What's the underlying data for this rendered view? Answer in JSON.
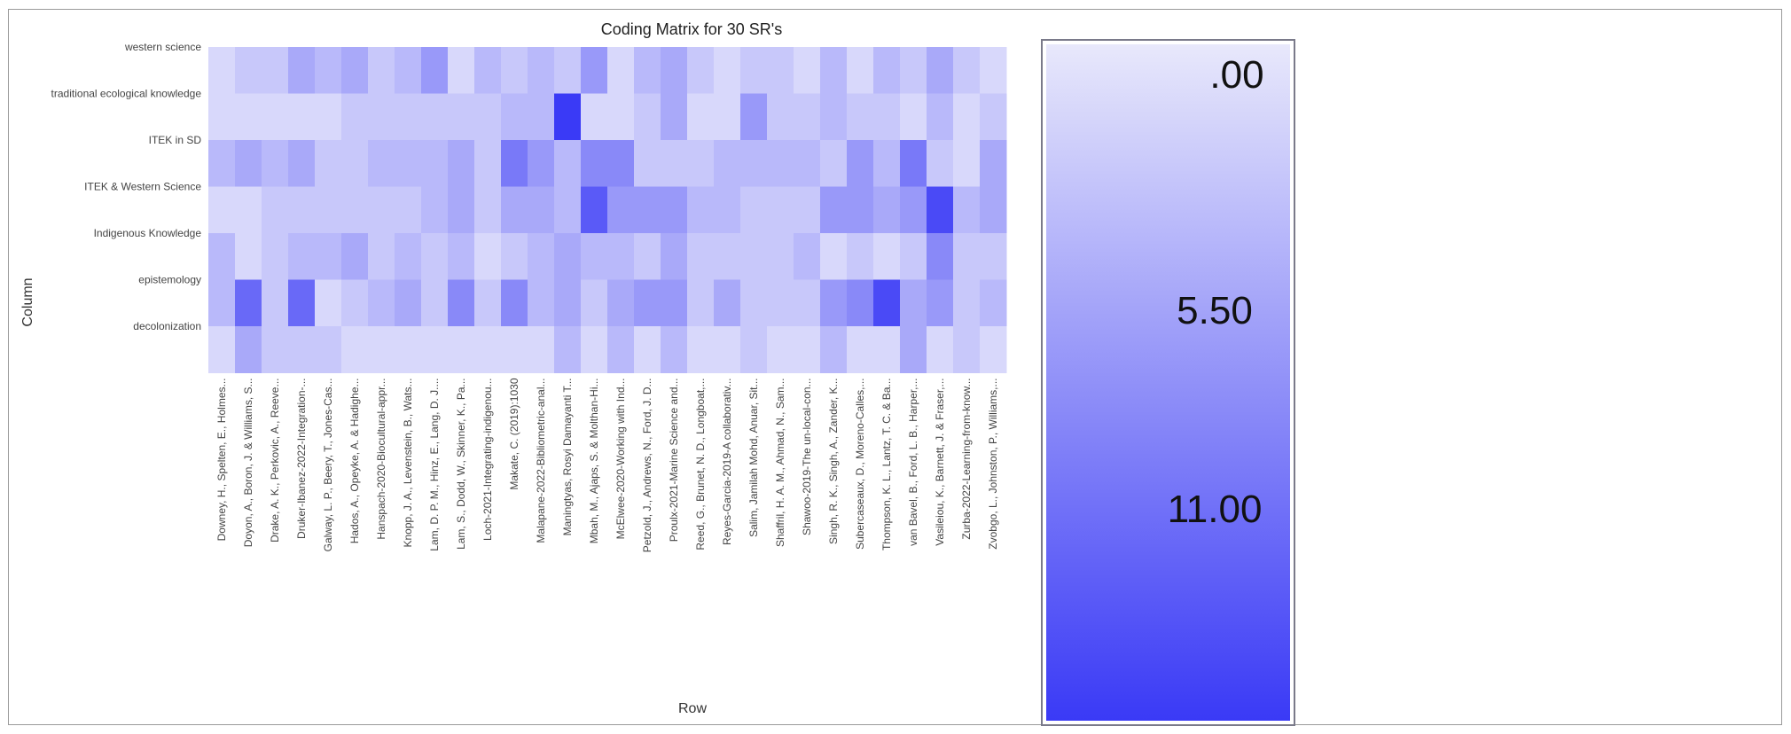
{
  "chart_data": {
    "type": "heatmap",
    "title": "Coding Matrix for 30 SR's",
    "xlabel": "Row",
    "ylabel": "Column",
    "x_categories": [
      "Downey, H., Spelten, E., Holmes...",
      "Doyon, A., Boron, J. & Williams, S...",
      "Drake, A. K., Perkovic, A., Reeve...",
      "Druker-Ibanez-2022-Integration-...",
      "Galway, L. P., Beery, T., Jones-Cas...",
      "Hados, A., Opeyke, A. & Hadighe...",
      "Hanspach-2020-Biocultural-appr...",
      "Knopp, J. A., Levenstein, B., Wats...",
      "Lam, D. P. M., Hinz, E., Lang, D. J....",
      "Lam, S., Dodd, W., Skinner, K., Pa...",
      "Loch-2021-Integrating-indigenou...",
      "Makate, C. (2019):1030",
      "Malapane-2022-Bibliometric-anal...",
      "Maningtyas, Rosyi Damayanti T...",
      "Mbah, M., Ajaps, S. & Molthan-Hi...",
      "McElwee-2020-Working with Ind...",
      "Petzold, J., Andrews, N., Ford, J. D...",
      "Proulx-2021-Marine Science and...",
      "Reed, G., Brunet, N. D., Longboat,...",
      "Reyes-Garcia-2019-A collaborativ...",
      "Salim, Jamilah Mohd, Anuar, Sit...",
      "Shaffril, H. A. M., Ahmad, N., Sam...",
      "Shawoo-2019-The un-local-con...",
      "Singh, R. K., Singh, A., Zander, K...",
      "Subercaseaux, D., Moreno-Calles,...",
      "Thompson, K. L., Lantz, T. C. & Ba...",
      "van Bavel, B., Ford, L. B., Harper,...",
      "Vasileiou, K., Barnett, J. & Fraser,...",
      "Zurba-2022-Learning-from-know...",
      "Zvobgo, L., Johnston, P., Williams,..."
    ],
    "y_categories": [
      "western science",
      "traditional ecological knowledge",
      "ITEK in SD",
      "ITEK & Western Science",
      "Indigenous Knowledge",
      "epistemology",
      "decolonization"
    ],
    "values": [
      [
        1,
        2,
        2,
        4,
        3,
        4,
        2,
        3,
        5,
        1,
        3,
        2,
        3,
        2,
        5,
        1,
        3,
        4,
        2,
        1,
        2,
        2,
        1,
        3,
        1,
        3,
        2,
        4,
        2,
        1
      ],
      [
        1,
        1,
        1,
        1,
        1,
        2,
        2,
        2,
        2,
        2,
        2,
        3,
        3,
        11,
        1,
        1,
        2,
        4,
        1,
        1,
        5,
        2,
        2,
        3,
        2,
        2,
        1,
        3,
        1,
        2
      ],
      [
        3,
        4,
        3,
        4,
        2,
        2,
        3,
        3,
        3,
        4,
        2,
        7,
        5,
        3,
        6,
        6,
        2,
        2,
        2,
        3,
        3,
        3,
        3,
        2,
        5,
        3,
        7,
        2,
        1,
        4
      ],
      [
        1,
        1,
        2,
        2,
        2,
        2,
        2,
        2,
        3,
        4,
        2,
        4,
        4,
        3,
        9,
        5,
        5,
        5,
        3,
        3,
        2,
        2,
        2,
        5,
        5,
        4,
        5,
        10,
        3,
        4
      ],
      [
        3,
        1,
        2,
        3,
        3,
        4,
        2,
        3,
        2,
        3,
        1,
        2,
        3,
        4,
        3,
        3,
        2,
        4,
        2,
        2,
        2,
        2,
        3,
        1,
        2,
        1,
        2,
        6,
        2,
        2
      ],
      [
        3,
        8,
        2,
        8,
        1,
        2,
        3,
        4,
        2,
        6,
        2,
        6,
        3,
        4,
        2,
        4,
        5,
        5,
        2,
        4,
        2,
        2,
        2,
        5,
        6,
        10,
        4,
        5,
        2,
        3
      ],
      [
        1,
        4,
        2,
        2,
        2,
        1,
        1,
        1,
        1,
        1,
        1,
        1,
        1,
        3,
        1,
        3,
        1,
        3,
        1,
        1,
        2,
        1,
        1,
        3,
        1,
        1,
        4,
        1,
        2,
        1
      ]
    ],
    "scale": {
      "min": 0,
      "mid": 5.5,
      "max": 11,
      "labels": [
        ".00",
        "5.50",
        "11.00"
      ]
    },
    "colors": {
      "low": "#e8e8fb",
      "high": "#3a3af6"
    },
    "legend_position": "right",
    "grid": false
  }
}
